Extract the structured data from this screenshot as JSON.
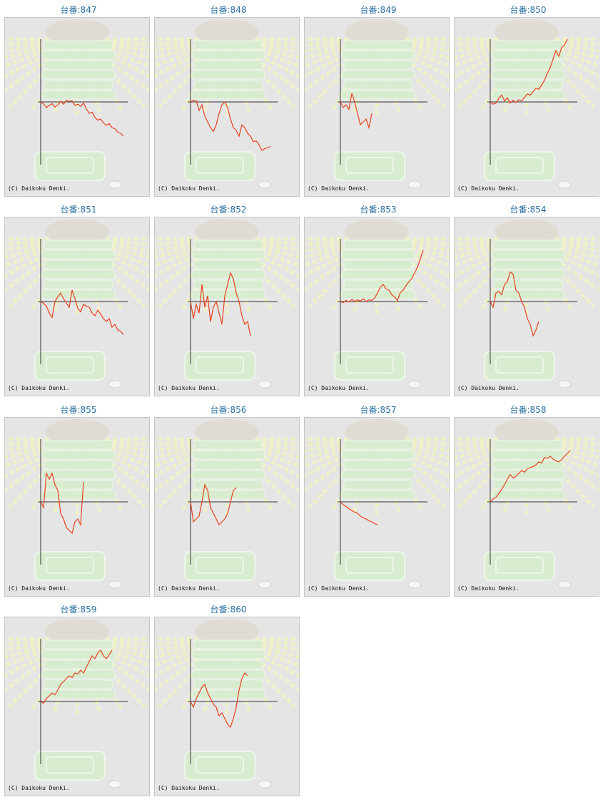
{
  "colors": {
    "title": "#2a6fa0",
    "line": "#e8421c",
    "panel": "#e5e5e5",
    "axis": "#333333"
  },
  "icons": [
    "pachinko-machine-watermark-icon",
    "sunburst-background-icon",
    "coin-tray-icon"
  ],
  "panels": [
    {
      "title": "台番:847",
      "copyright": "(C) Daikoku Denki.",
      "chart_data": {
        "type": "line",
        "y": [
          0,
          -3,
          -10,
          -6,
          -3,
          -9,
          -5,
          1,
          -4,
          3,
          1,
          2,
          -6,
          -4,
          -8,
          -2,
          -12,
          -20,
          -18,
          -27,
          -32,
          -30,
          -37,
          -41,
          -38,
          -45,
          -47,
          -53,
          -55,
          -60
        ]
      }
    },
    {
      "title": "台番:848",
      "copyright": "(C) Daikoku Denki.",
      "chart_data": {
        "type": "line",
        "y": [
          0,
          3,
          2,
          -15,
          -5,
          -25,
          -35,
          -45,
          -52,
          -40,
          -20,
          -5,
          0,
          -10,
          -30,
          -45,
          -50,
          -60,
          -40,
          -45,
          -55,
          -60,
          -70,
          -68,
          -75,
          -85,
          -82,
          -80,
          -78
        ]
      }
    },
    {
      "title": "台番:849",
      "copyright": "(C) Daikoku Denki.",
      "chart_data": {
        "type": "line",
        "y": [
          0,
          -10,
          -5,
          -13,
          15,
          0,
          -20,
          -40,
          -35,
          -30,
          -45,
          -20
        ]
      }
    },
    {
      "title": "台番:850",
      "copyright": "(C) Daikoku Denki.",
      "chart_data": {
        "type": "line",
        "y": [
          0,
          -4,
          -2,
          6,
          12,
          2,
          7,
          -2,
          3,
          -1,
          4,
          2,
          8,
          14,
          12,
          18,
          24,
          22,
          30,
          38,
          50,
          60,
          75,
          90,
          80,
          95,
          100,
          110
        ]
      }
    },
    {
      "title": "台番:851",
      "copyright": "(C) Daikoku Denki.",
      "chart_data": {
        "type": "line",
        "y": [
          0,
          -3,
          -8,
          -20,
          -28,
          0,
          8,
          15,
          5,
          -3,
          -10,
          20,
          5,
          -12,
          -18,
          -5,
          -8,
          -10,
          -20,
          -25,
          -15,
          -22,
          -30,
          -35,
          -30,
          -45,
          -40,
          -50,
          -52,
          -58
        ]
      }
    },
    {
      "title": "台番:852",
      "copyright": "(C) Daikoku Denki.",
      "chart_data": {
        "type": "line",
        "y": [
          0,
          -30,
          -5,
          -20,
          30,
          -10,
          10,
          -35,
          -10,
          0,
          -20,
          -40,
          10,
          30,
          50,
          40,
          15,
          0,
          -25,
          -40,
          -35,
          -60
        ]
      }
    },
    {
      "title": "台番:853",
      "copyright": "(C) Daikoku Denki.",
      "chart_data": {
        "type": "line",
        "y": [
          0,
          -2,
          2,
          -1,
          4,
          0,
          3,
          1,
          5,
          0,
          3,
          2,
          6,
          15,
          25,
          30,
          22,
          20,
          12,
          8,
          2,
          16,
          20,
          28,
          35,
          40,
          50,
          60,
          75,
          90
        ]
      }
    },
    {
      "title": "台番:854",
      "copyright": "(C) Daikoku Denki.",
      "chart_data": {
        "type": "line",
        "y": [
          0,
          -10,
          15,
          18,
          12,
          30,
          35,
          52,
          48,
          20,
          15,
          0,
          -10,
          -30,
          -40,
          -60,
          -50,
          -35
        ]
      }
    },
    {
      "title": "台番:855",
      "copyright": "(C) Daikoku Denki.",
      "chart_data": {
        "type": "line",
        "y": [
          0,
          -10,
          50,
          40,
          50,
          30,
          20,
          -20,
          -30,
          -45,
          -50,
          -55,
          -35,
          -30,
          -40,
          35
        ]
      }
    },
    {
      "title": "台番:856",
      "copyright": "(C) Daikoku Denki.",
      "chart_data": {
        "type": "line",
        "y": [
          0,
          -35,
          -30,
          -25,
          0,
          30,
          20,
          -10,
          -20,
          -30,
          -40,
          -35,
          -30,
          -20,
          0,
          20,
          25
        ]
      }
    },
    {
      "title": "台番:857",
      "copyright": "(C) Daikoku Denki.",
      "chart_data": {
        "type": "line",
        "y": [
          0,
          -5,
          -8,
          -12,
          -15,
          -18,
          -20,
          -25,
          -28,
          -30,
          -33,
          -35,
          -38,
          -40
        ]
      }
    },
    {
      "title": "台番:858",
      "copyright": "(C) Daikoku Denki.",
      "chart_data": {
        "type": "line",
        "y": [
          0,
          5,
          8,
          15,
          22,
          30,
          40,
          48,
          42,
          45,
          50,
          55,
          52,
          58,
          60,
          62,
          65,
          70,
          68,
          78,
          76,
          80,
          75,
          72,
          70,
          74,
          80,
          85,
          90
        ]
      }
    },
    {
      "title": "台番:859",
      "copyright": "(C) Daikoku Denki.",
      "chart_data": {
        "type": "line",
        "y": [
          0,
          -3,
          5,
          10,
          15,
          12,
          20,
          30,
          35,
          40,
          45,
          42,
          50,
          48,
          55,
          50,
          60,
          70,
          80,
          75,
          85,
          90,
          80,
          75,
          82,
          90
        ]
      }
    },
    {
      "title": "台番:860",
      "copyright": "(C) Daikoku Denki.",
      "chart_data": {
        "type": "line",
        "y": [
          0,
          -10,
          5,
          15,
          25,
          30,
          15,
          5,
          -5,
          -10,
          -25,
          -20,
          -30,
          -40,
          -45,
          -30,
          -10,
          20,
          40,
          50,
          45
        ]
      }
    }
  ]
}
